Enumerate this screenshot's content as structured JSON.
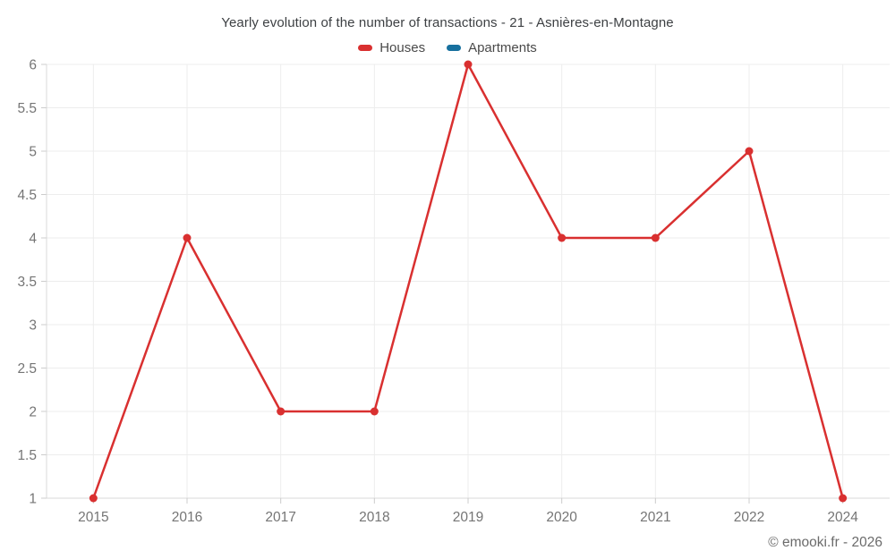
{
  "title": "Yearly evolution of the number of transactions - 21 - Asnières-en-Montagne",
  "footer": "© emooki.fr - 2026",
  "legend": {
    "items": [
      {
        "label": "Houses",
        "color": "#d93030"
      },
      {
        "label": "Apartments",
        "color": "#17709e"
      }
    ]
  },
  "chart_data": {
    "type": "line",
    "title": "Yearly evolution of the number of transactions - 21 - Asnières-en-Montagne",
    "categories": [
      "2015",
      "2016",
      "2017",
      "2018",
      "2019",
      "2020",
      "2021",
      "2022",
      "2024"
    ],
    "series": [
      {
        "name": "Houses",
        "color": "#d93030",
        "values": [
          1,
          4,
          2,
          2,
          6,
          4,
          4,
          5,
          1
        ]
      },
      {
        "name": "Apartments",
        "color": "#17709e",
        "values": []
      }
    ],
    "xlabel": "",
    "ylabel": "",
    "ylim": [
      1,
      6
    ],
    "ytick_step": 0.5,
    "yticks": [
      1,
      1.5,
      2,
      2.5,
      3,
      3.5,
      4,
      4.5,
      5,
      5.5,
      6
    ],
    "grid": true,
    "legend_position": "top",
    "marker": "circle"
  },
  "colors": {
    "background": "#ffffff",
    "grid": "#ededed",
    "axis": "#d8d8d8",
    "tick": "#cccccc",
    "axis_label": "#757575",
    "title_text": "#3d4043",
    "legend_text": "#4a4a4a",
    "footer_text": "#6b6b6b"
  }
}
